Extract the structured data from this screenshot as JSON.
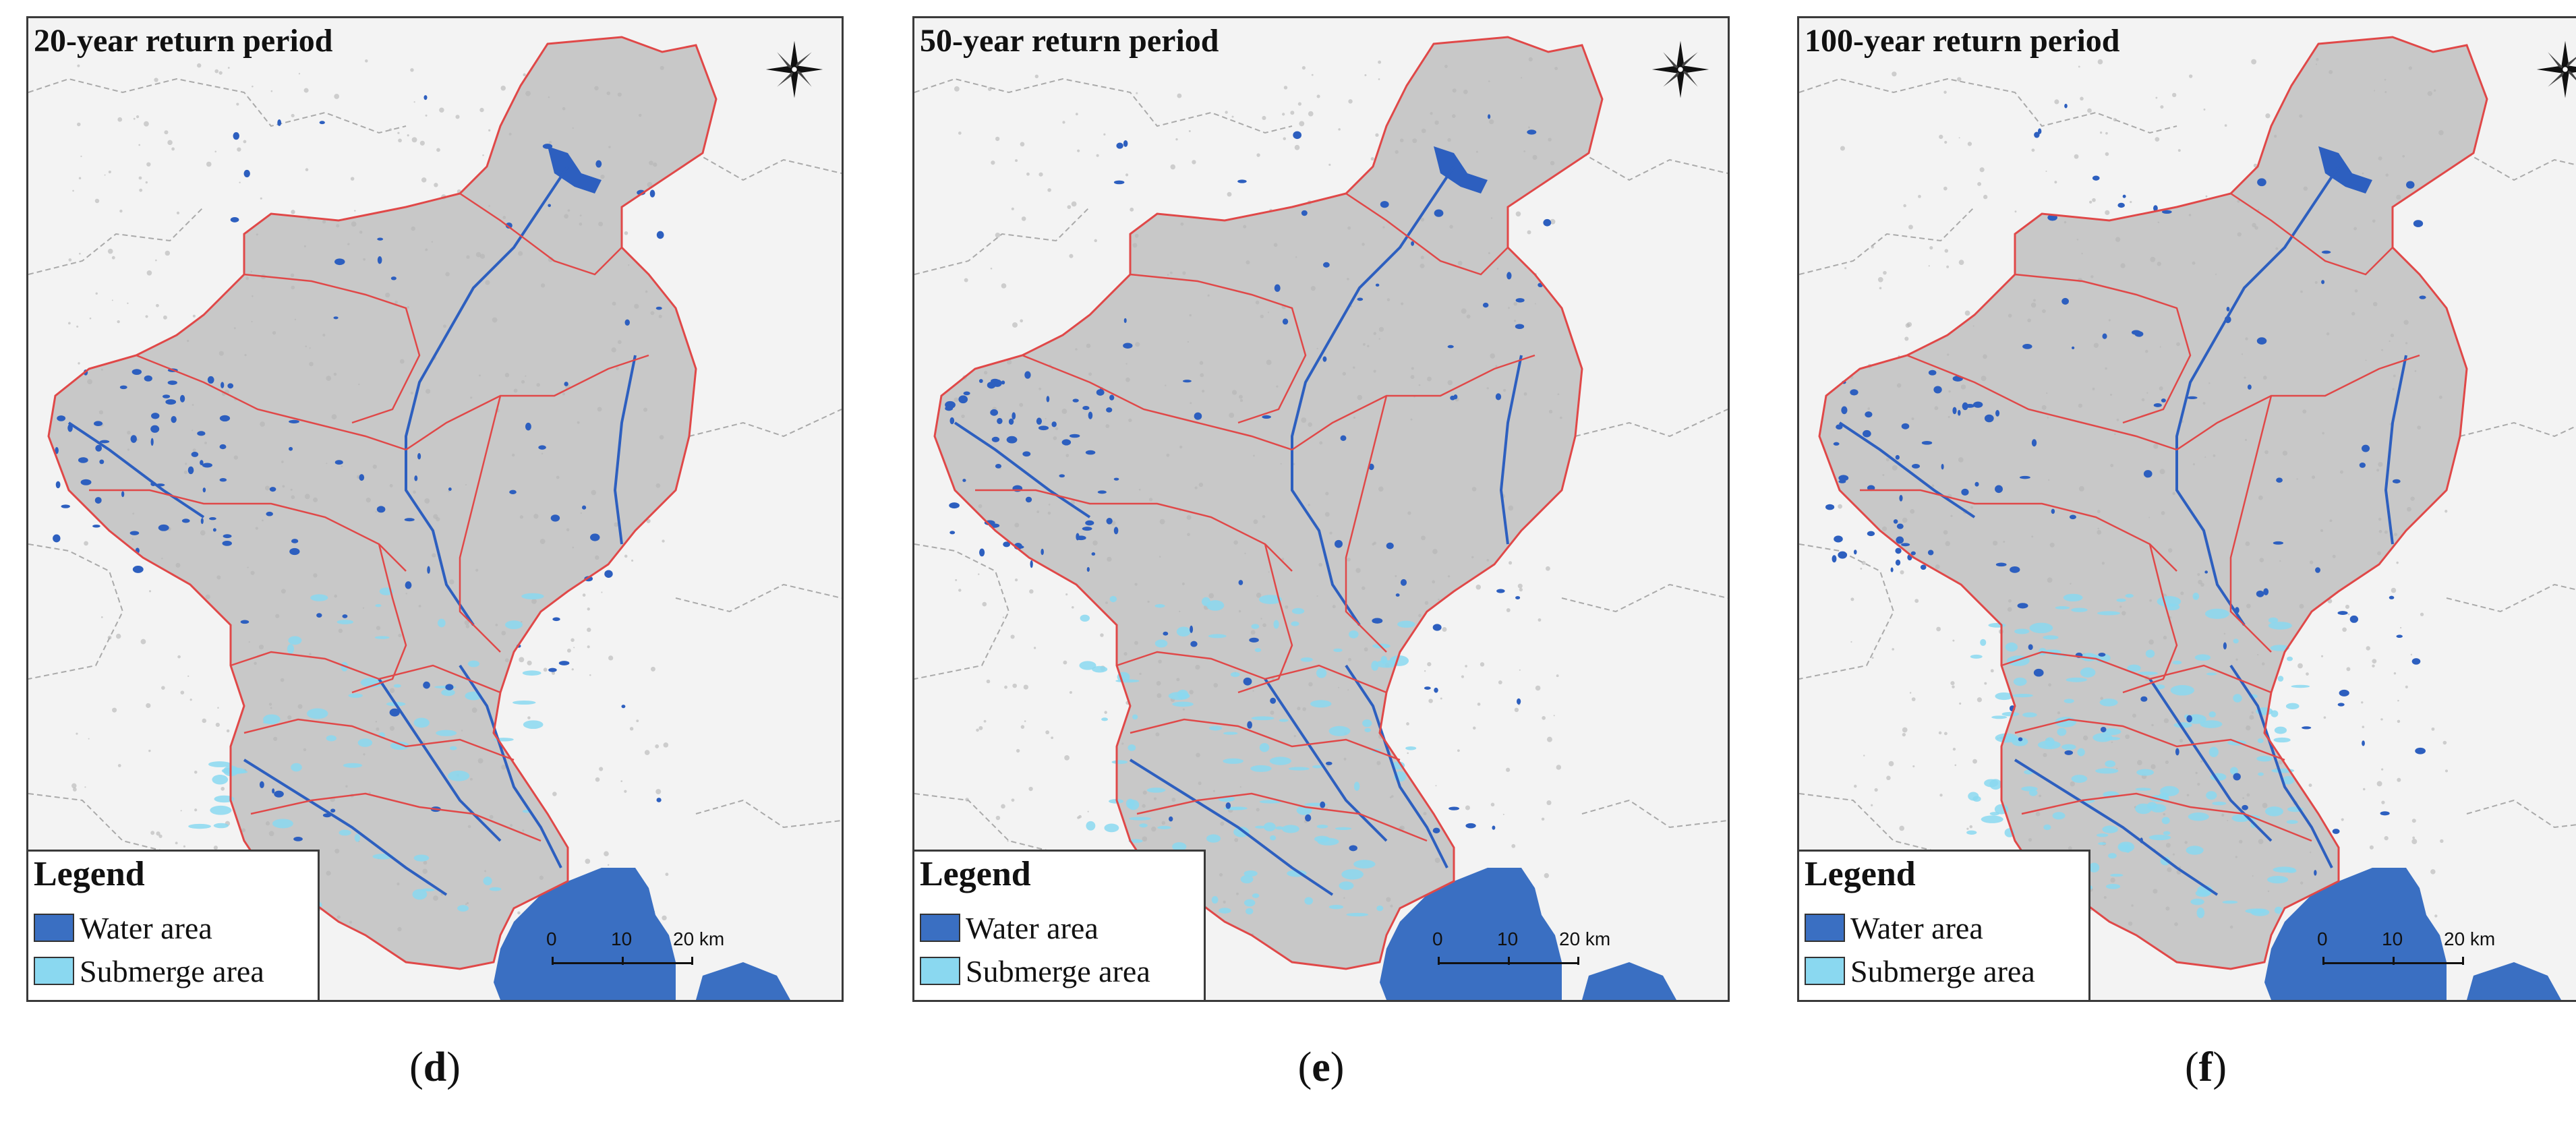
{
  "panels": [
    {
      "id": "d",
      "title": "20-year return period",
      "caption_open": "(",
      "caption_letter": "d",
      "caption_close": ")"
    },
    {
      "id": "e",
      "title": "50-year return period",
      "caption_open": "(",
      "caption_letter": "e",
      "caption_close": ")"
    },
    {
      "id": "f",
      "title": "100-year return period",
      "caption_open": "(",
      "caption_letter": "f",
      "caption_close": ")"
    }
  ],
  "legend": {
    "title": "Legend",
    "items": [
      {
        "label": "Water area",
        "color": "#3a6fc2"
      },
      {
        "label": "Submerge area",
        "color": "#8ad8f0"
      }
    ]
  },
  "scalebar": {
    "ticks": [
      "0",
      "10",
      "20 km"
    ]
  },
  "colors": {
    "land": "#c8c8c8",
    "district_border": "#e04848",
    "outer_border": "#aaaaaa",
    "sea": "#3a6fc2",
    "water": "#2d5fbf",
    "submerge": "#8ad8f0",
    "background": "#f3f3f3"
  },
  "icons": {
    "compass": "north-arrow-compass-icon"
  }
}
